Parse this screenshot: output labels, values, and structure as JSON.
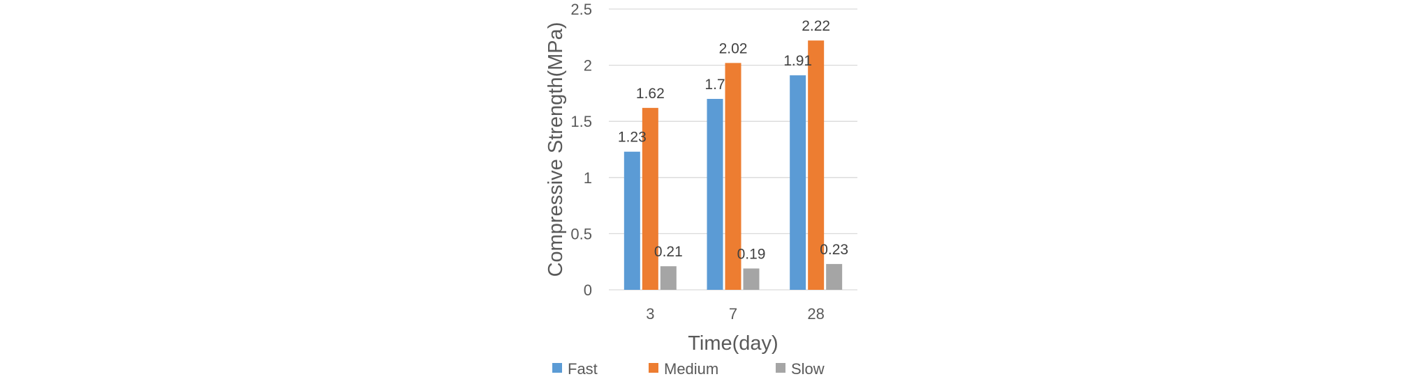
{
  "chart_data": {
    "type": "bar",
    "title": "",
    "xlabel": "Time(day)",
    "ylabel": "Compressive Strength(MPa)",
    "categories": [
      "3",
      "7",
      "28"
    ],
    "series": [
      {
        "name": "Fast",
        "values": [
          1.23,
          1.7,
          1.91
        ],
        "color": "#5b9bd5"
      },
      {
        "name": "Medium",
        "values": [
          1.62,
          2.02,
          2.22
        ],
        "color": "#ed7d31"
      },
      {
        "name": "Slow",
        "values": [
          0.21,
          0.19,
          0.23
        ],
        "color": "#a5a5a5"
      }
    ],
    "ylim": [
      0,
      2.5
    ],
    "yticks": [
      "0",
      "0.5",
      "1",
      "1.5",
      "2",
      "2.5"
    ],
    "data_labels": [
      [
        "1.23",
        "1.7",
        "1.91"
      ],
      [
        "1.62",
        "2.02",
        "2.22"
      ],
      [
        "0.21",
        "0.19",
        "0.23"
      ]
    ],
    "grid": true,
    "legend": "bottom"
  }
}
